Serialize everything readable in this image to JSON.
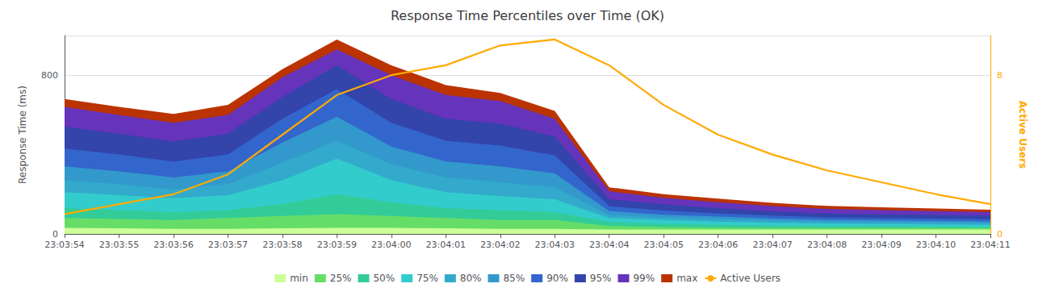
{
  "chart_data": {
    "type": "area",
    "title": "Response Time Percentiles over Time (OK)",
    "ylabel": "Response Time (ms)",
    "y2label": "Active Users",
    "categories": [
      "23:03:54",
      "23:03:55",
      "23:03:56",
      "23:03:57",
      "23:03:58",
      "23:03:59",
      "23:04:00",
      "23:04:01",
      "23:04:02",
      "23:04:03",
      "23:04:04",
      "23:04:05",
      "23:04:06",
      "23:04:07",
      "23:04:08",
      "23:04:09",
      "23:04:10",
      "23:04:11"
    ],
    "series": [
      {
        "name": "min",
        "color": "#ccff99",
        "values": [
          30,
          28,
          25,
          25,
          28,
          30,
          30,
          28,
          25,
          25,
          22,
          22,
          22,
          22,
          22,
          22,
          22,
          22
        ]
      },
      {
        "name": "25%",
        "color": "#66dd66",
        "values": [
          80,
          75,
          70,
          80,
          90,
          100,
          90,
          80,
          70,
          70,
          40,
          35,
          32,
          30,
          30,
          30,
          30,
          30
        ]
      },
      {
        "name": "50%",
        "color": "#33cc99",
        "values": [
          130,
          120,
          110,
          120,
          150,
          200,
          160,
          130,
          120,
          110,
          60,
          52,
          46,
          42,
          40,
          40,
          38,
          35
        ]
      },
      {
        "name": "75%",
        "color": "#33cccc",
        "values": [
          210,
          195,
          180,
          195,
          270,
          380,
          270,
          210,
          190,
          175,
          80,
          70,
          62,
          56,
          52,
          50,
          48,
          46
        ]
      },
      {
        "name": "80%",
        "color": "#33aacc",
        "values": [
          270,
          250,
          225,
          250,
          360,
          470,
          350,
          285,
          260,
          235,
          95,
          82,
          74,
          66,
          60,
          58,
          56,
          54
        ]
      },
      {
        "name": "85%",
        "color": "#3399cc",
        "values": [
          340,
          315,
          285,
          315,
          460,
          590,
          440,
          365,
          340,
          305,
          115,
          97,
          87,
          77,
          70,
          68,
          65,
          62
        ]
      },
      {
        "name": "90%",
        "color": "#3366cc",
        "values": [
          430,
          400,
          365,
          400,
          580,
          730,
          560,
          470,
          445,
          395,
          140,
          118,
          104,
          92,
          83,
          80,
          77,
          74
        ]
      },
      {
        "name": "95%",
        "color": "#3344aa",
        "values": [
          540,
          505,
          465,
          505,
          690,
          850,
          680,
          580,
          555,
          490,
          175,
          148,
          130,
          114,
          103,
          99,
          96,
          92
        ]
      },
      {
        "name": "99%",
        "color": "#6633bb",
        "values": [
          640,
          600,
          560,
          600,
          790,
          930,
          800,
          700,
          670,
          580,
          215,
          182,
          160,
          140,
          126,
          120,
          115,
          110
        ]
      },
      {
        "name": "max",
        "color": "#bb3300",
        "values": [
          680,
          640,
          605,
          650,
          830,
          980,
          850,
          750,
          710,
          620,
          235,
          200,
          178,
          157,
          141,
          134,
          128,
          122
        ]
      },
      {
        "name": "Active Users",
        "type": "line",
        "axis": "y2",
        "color": "#ffaa00",
        "values": [
          1.0,
          1.5,
          2.0,
          3.0,
          5.0,
          7.0,
          8.0,
          8.5,
          9.5,
          9.8,
          8.5,
          6.5,
          5.0,
          4.0,
          3.2,
          2.6,
          2.0,
          1.5
        ]
      }
    ],
    "ylim": [
      0,
      1000
    ],
    "yticks": [
      0,
      800
    ],
    "y2lim": [
      0,
      10
    ],
    "y2ticks": [
      0,
      8
    ],
    "grid": true,
    "legend": "bottom"
  }
}
